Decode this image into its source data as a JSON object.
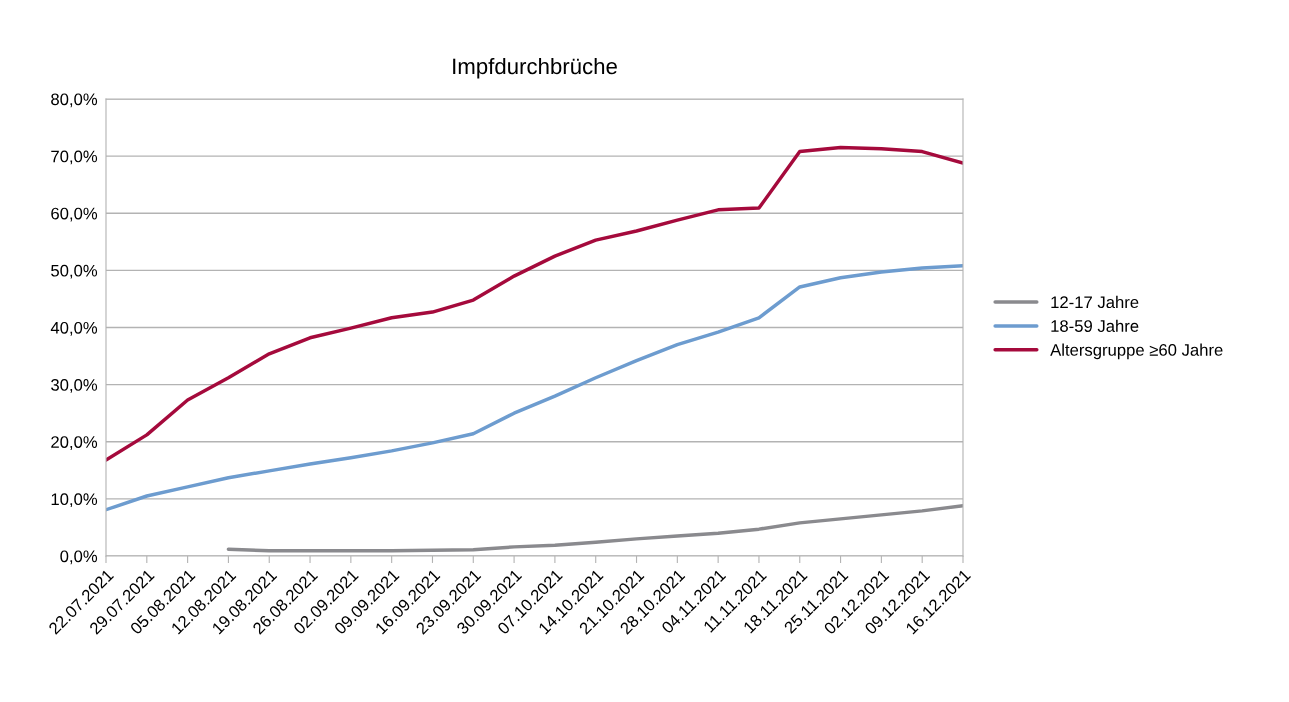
{
  "chart_data": {
    "type": "line",
    "title": "Impfdurchbrüche",
    "categories": [
      "22.07.2021",
      "29.07.2021",
      "05.08.2021",
      "12.08.2021",
      "19.08.2021",
      "26.08.2021",
      "02.09.2021",
      "09.09.2021",
      "16.09.2021",
      "23.09.2021",
      "30.09.2021",
      "07.10.2021",
      "14.10.2021",
      "21.10.2021",
      "28.10.2021",
      "04.11.2021",
      "11.11.2021",
      "18.11.2021",
      "25.11.2021",
      "02.12.2021",
      "09.12.2021",
      "16.12.2021"
    ],
    "series": [
      {
        "name": "12-17 Jahre",
        "color": "#8a8a8e",
        "values": [
          null,
          null,
          null,
          1.2,
          0.9,
          0.9,
          0.9,
          0.9,
          1.0,
          1.1,
          1.6,
          1.9,
          2.4,
          3.0,
          3.5,
          4.0,
          4.7,
          5.8,
          6.5,
          7.2,
          7.9,
          8.8
        ]
      },
      {
        "name": "18-59 Jahre",
        "color": "#6d9ccf",
        "values": [
          8.1,
          10.5,
          12.1,
          13.7,
          14.9,
          16.1,
          17.2,
          18.4,
          19.8,
          21.4,
          25.0,
          28.0,
          31.2,
          34.2,
          37.0,
          39.2,
          41.7,
          47.1,
          48.7,
          49.7,
          50.4,
          50.8
        ]
      },
      {
        "name": "Altersgruppe ≥60 Jahre",
        "color": "#a50a3c",
        "values": [
          16.8,
          21.2,
          27.3,
          31.2,
          35.4,
          38.2,
          39.9,
          41.7,
          42.7,
          44.8,
          49.0,
          52.5,
          55.3,
          56.9,
          58.8,
          60.6,
          60.9,
          70.8,
          71.5,
          71.3,
          70.8,
          68.8
        ]
      }
    ],
    "ylim": [
      0,
      80
    ],
    "yticks": [
      {
        "value": 0,
        "label": "0,0%"
      },
      {
        "value": 10,
        "label": "10,0%"
      },
      {
        "value": 20,
        "label": "20,0%"
      },
      {
        "value": 30,
        "label": "30,0%"
      },
      {
        "value": 40,
        "label": "40,0%"
      },
      {
        "value": 50,
        "label": "50,0%"
      },
      {
        "value": 60,
        "label": "60,0%"
      },
      {
        "value": 70,
        "label": "70,0%"
      },
      {
        "value": 80,
        "label": "80,0%"
      }
    ],
    "grid": "y",
    "legend": "right",
    "marker": "none",
    "line_style": "solid"
  }
}
